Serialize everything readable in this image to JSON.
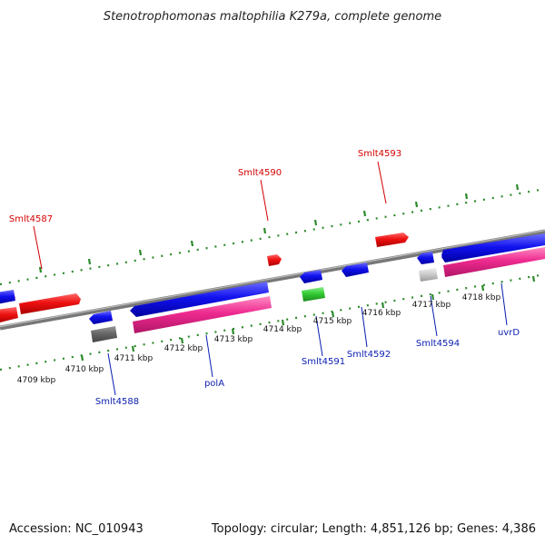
{
  "title": "Stenotrophomonas maltophilia K279a, complete genome",
  "footer": {
    "accession": "Accession: NC_010943",
    "summary": "Topology: circular; Length: 4,851,126 bp; Genes: 4,386"
  },
  "ticks": [
    "4709 kbp",
    "4710 kbp",
    "4711 kbp",
    "4712 kbp",
    "4713 kbp",
    "4714 kbp",
    "4715 kbp",
    "4716 kbp",
    "4717 kbp",
    "4718 kbp"
  ],
  "gene_labels": {
    "top": [
      "Smlt4587",
      "Smlt4590",
      "Smlt4593"
    ],
    "bottom": [
      "Smlt4588",
      "polA",
      "Smlt4591",
      "Smlt4592",
      "Smlt4594",
      "uvrD"
    ]
  },
  "colors": {
    "forward": "#ee1111",
    "reverse": "#1111ee",
    "pink": "#ee2a8f",
    "green": "#33cc33",
    "dark_gray": "#666666",
    "light_gray": "#cccccc",
    "tick": "#2b8a2b",
    "backbone": "#7a7a7a"
  }
}
